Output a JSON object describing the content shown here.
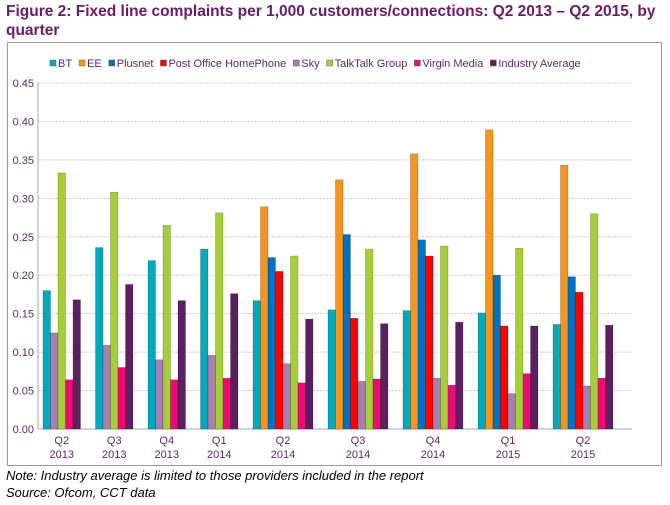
{
  "title": "Figure 2: Fixed line complaints per 1,000 customers/connections: Q2 2013 – Q2 2015, by quarter",
  "chart_data": {
    "type": "bar",
    "title": "Figure 2: Fixed line complaints per 1,000 customers/connections: Q2 2013 – Q2 2015, by quarter",
    "xlabel": "",
    "ylabel": "",
    "ylim": [
      0,
      0.45
    ],
    "yticks": [
      "0.00",
      "0.05",
      "0.10",
      "0.15",
      "0.20",
      "0.25",
      "0.30",
      "0.35",
      "0.40",
      "0.45"
    ],
    "grid": true,
    "legend_placement": "top",
    "categories": [
      [
        "Q2",
        "2013"
      ],
      [
        "Q3",
        "2013"
      ],
      [
        "Q4",
        "2013"
      ],
      [
        "Q1",
        "2014"
      ],
      [
        "Q2",
        "2014"
      ],
      [
        "Q3",
        "2014"
      ],
      [
        "Q4",
        "2014"
      ],
      [
        "Q1",
        "2015"
      ],
      [
        "Q2",
        "2015"
      ]
    ],
    "series": [
      {
        "name": "BT",
        "color": "#00a9bc",
        "values": [
          0.18,
          0.236,
          0.219,
          0.234,
          0.167,
          0.155,
          0.154,
          0.151,
          0.136
        ]
      },
      {
        "name": "EE",
        "color": "#f7941d",
        "values": [
          null,
          null,
          null,
          null,
          0.289,
          0.324,
          0.358,
          0.389,
          0.343
        ]
      },
      {
        "name": "Plusnet",
        "color": "#0070c0",
        "values": [
          null,
          null,
          null,
          null,
          0.223,
          0.253,
          0.246,
          0.2,
          0.198
        ]
      },
      {
        "name": "Post Office HomePhone",
        "color": "#ff0000",
        "values": [
          null,
          null,
          null,
          null,
          0.205,
          0.144,
          0.225,
          0.134,
          0.178
        ]
      },
      {
        "name": "Sky",
        "color": "#a57fb0",
        "values": [
          0.125,
          0.109,
          0.09,
          0.096,
          0.085,
          0.062,
          0.066,
          0.046,
          0.056
        ]
      },
      {
        "name": "TalkTalk Group",
        "color": "#a6ce39",
        "values": [
          0.333,
          0.308,
          0.265,
          0.281,
          0.225,
          0.234,
          0.238,
          0.235,
          0.28
        ]
      },
      {
        "name": "Virgin Media",
        "color": "#ec0b72",
        "values": [
          0.064,
          0.08,
          0.064,
          0.066,
          0.06,
          0.065,
          0.057,
          0.072,
          0.066
        ]
      },
      {
        "name": "Industry Average",
        "color": "#5c1f62",
        "values": [
          0.168,
          0.188,
          0.167,
          0.176,
          0.143,
          0.137,
          0.139,
          0.134,
          0.135
        ]
      }
    ]
  },
  "notes": {
    "note": "Note: Industry average is limited to those providers included in the report",
    "source": "Source: Ofcom, CCT data"
  }
}
